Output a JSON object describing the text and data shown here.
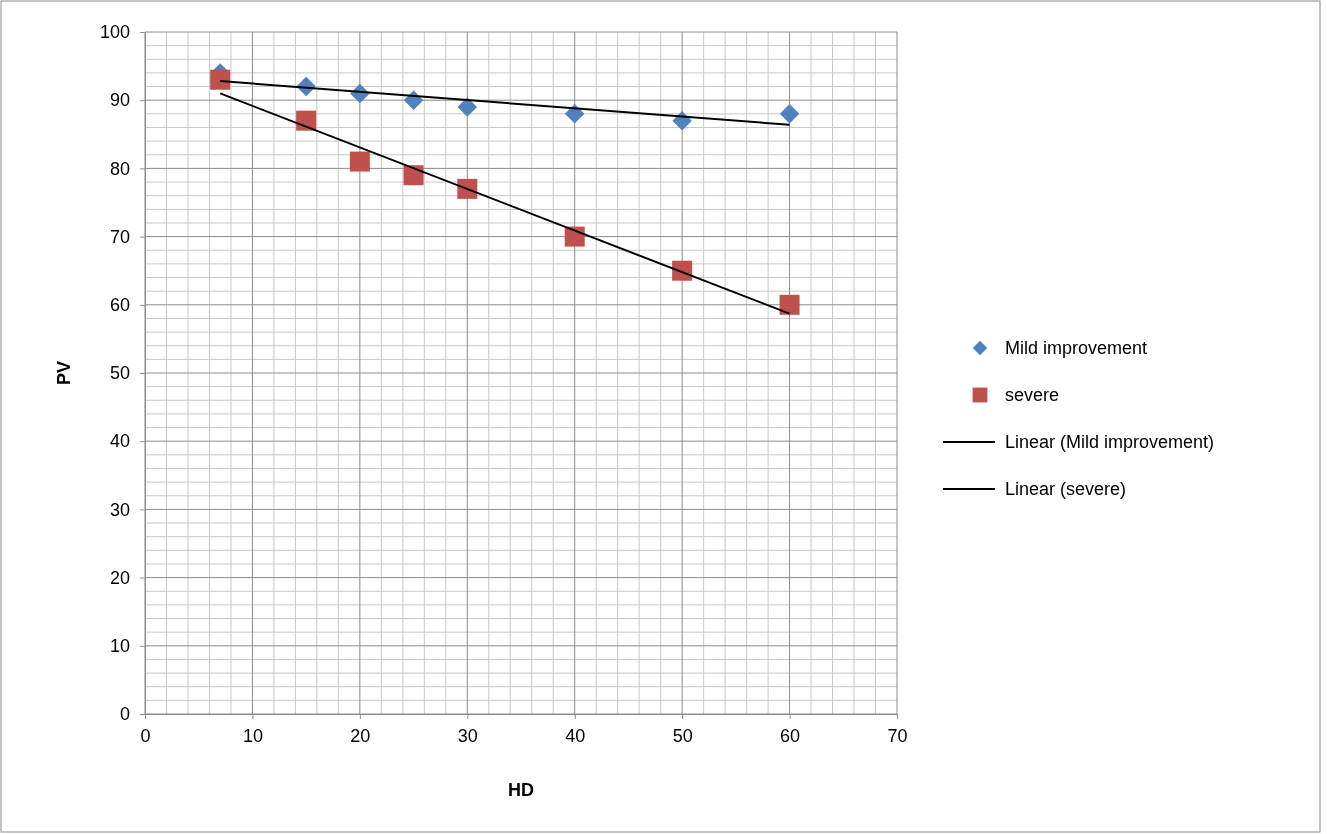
{
  "chart_data": {
    "type": "scatter",
    "xlabel": "HD",
    "ylabel": "PV",
    "xlim": [
      0,
      70
    ],
    "xticks": [
      0,
      10,
      20,
      30,
      40,
      50,
      60,
      70
    ],
    "ylim": [
      0,
      100
    ],
    "yticks": [
      0,
      10,
      20,
      30,
      40,
      50,
      60,
      70,
      80,
      90,
      100
    ],
    "grid": true,
    "legend": "right",
    "series": [
      {
        "name": "Mild improvement",
        "marker": "diamond",
        "color": "#4f81bd",
        "x": [
          7,
          15,
          20,
          25,
          30,
          40,
          50,
          60
        ],
        "values": [
          94,
          92,
          91,
          90,
          89,
          88,
          87,
          88
        ]
      },
      {
        "name": "severe",
        "marker": "square",
        "color": "#c0504d",
        "x": [
          7,
          15,
          20,
          25,
          30,
          40,
          50,
          60
        ],
        "values": [
          93,
          87,
          81,
          79,
          77,
          70,
          65,
          60
        ]
      },
      {
        "name": "Linear (Mild improvement)",
        "type": "line",
        "marker": "none",
        "line_style": "solid",
        "color": "#000000",
        "x": [
          7,
          60
        ],
        "values": [
          92.8,
          86.4
        ]
      },
      {
        "name": "Linear (severe)",
        "type": "line",
        "marker": "none",
        "line_style": "solid",
        "color": "#000000",
        "x": [
          7,
          60
        ],
        "values": [
          91,
          58.7
        ]
      }
    ]
  }
}
